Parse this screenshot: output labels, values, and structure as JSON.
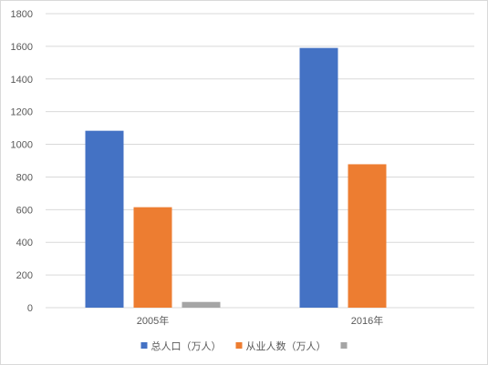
{
  "chart_data": {
    "type": "bar",
    "categories": [
      "2005年",
      "2016年"
    ],
    "series": [
      {
        "name": "总人口（万人）",
        "color": "#4472C4",
        "values": [
          1083,
          1590
        ]
      },
      {
        "name": "从业人数（万人）",
        "color": "#ED7D31",
        "values": [
          615,
          878
        ]
      },
      {
        "name": "",
        "color": "#A5A5A5",
        "values": [
          35,
          null
        ]
      }
    ],
    "ylim": [
      0,
      1800
    ],
    "yticks": [
      0,
      200,
      400,
      600,
      800,
      1000,
      1200,
      1400,
      1600,
      1800
    ],
    "ytick_labels": [
      "0",
      "200",
      "400",
      "600",
      "800",
      "1000",
      "1200",
      "1400",
      "1600",
      "1800"
    ],
    "grid": true,
    "legend_position": "bottom"
  }
}
